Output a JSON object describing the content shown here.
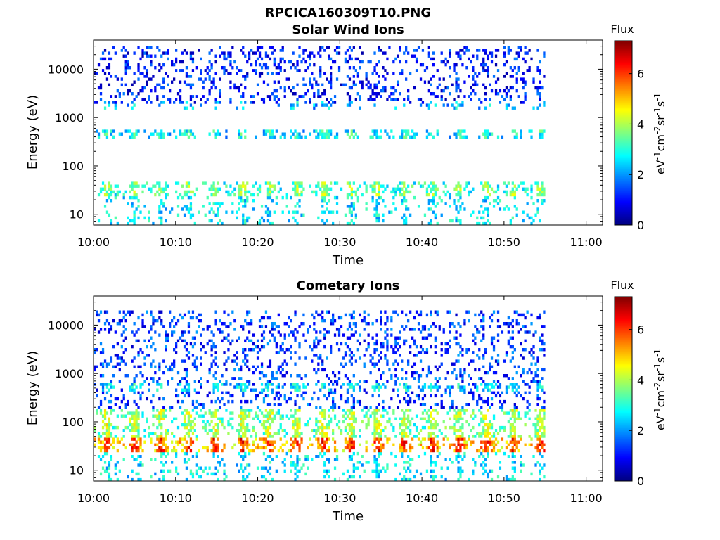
{
  "figure_title": "RPCICA160309T10.PNG",
  "colormap": "jet",
  "chart_data": [
    {
      "type": "heatmap",
      "title": "Solar Wind Ions",
      "xlabel": "Time",
      "ylabel": "Energy (eV)",
      "yscale": "log",
      "xlim": [
        "10:00",
        "11:02"
      ],
      "ylim": [
        6,
        40000
      ],
      "x_ticks": [
        "10:00",
        "10:10",
        "10:20",
        "10:30",
        "10:40",
        "10:50",
        "11:00"
      ],
      "y_ticks": [
        10,
        100,
        1000,
        10000
      ],
      "y_tick_labels": [
        "10",
        "100",
        "1000",
        "10000"
      ],
      "data_end_time": "10:55",
      "colorbar": {
        "title": "Flux",
        "label": "eV-1cm-2sr-1s-1",
        "range": [
          0,
          7.3
        ],
        "ticks": [
          0,
          2,
          4,
          6
        ],
        "tick_labels": [
          "0",
          "2",
          "4",
          "6"
        ]
      },
      "features": [
        {
          "energy_range_eV": [
            25,
            45
          ],
          "flux_level": 3.8,
          "pattern": "periodic bursts approx every 3.3 min"
        },
        {
          "energy_range_eV": [
            350,
            600
          ],
          "flux_level": 3.0,
          "pattern": "periodic bursts approx every 3.3 min"
        },
        {
          "energy_range_eV": [
            1400,
            2200
          ],
          "flux_level": 2.6,
          "pattern": "sparse periodic"
        },
        {
          "energy_range_eV": [
            2000,
            30000
          ],
          "flux_level": 1.2,
          "pattern": "scattered background"
        }
      ]
    },
    {
      "type": "heatmap",
      "title": "Cometary Ions",
      "xlabel": "Time",
      "ylabel": "Energy (eV)",
      "yscale": "log",
      "xlim": [
        "10:00",
        "11:02"
      ],
      "ylim": [
        6,
        40000
      ],
      "x_ticks": [
        "10:00",
        "10:10",
        "10:20",
        "10:30",
        "10:40",
        "10:50",
        "11:00"
      ],
      "y_ticks": [
        10,
        100,
        1000,
        10000
      ],
      "y_tick_labels": [
        "10",
        "100",
        "1000",
        "10000"
      ],
      "data_end_time": "10:55",
      "colorbar": {
        "title": "Flux",
        "label": "eV-1cm-2sr-1s-1",
        "range": [
          0,
          7.3
        ],
        "ticks": [
          0,
          2,
          4,
          6
        ],
        "tick_labels": [
          "0",
          "2",
          "4",
          "6"
        ]
      },
      "features": [
        {
          "energy_range_eV": [
            25,
            45
          ],
          "flux_level": 6.2,
          "pattern": "periodic bursts approx every 3.3 min"
        },
        {
          "energy_range_eV": [
            45,
            200
          ],
          "flux_level": 4.2,
          "pattern": "periodic bursts approx every 3.3 min"
        },
        {
          "energy_range_eV": [
            450,
            650
          ],
          "flux_level": 2.8,
          "pattern": "periodic bursts"
        },
        {
          "energy_range_eV": [
            200,
            20000
          ],
          "flux_level": 1.5,
          "pattern": "sparse scattered"
        }
      ]
    }
  ]
}
